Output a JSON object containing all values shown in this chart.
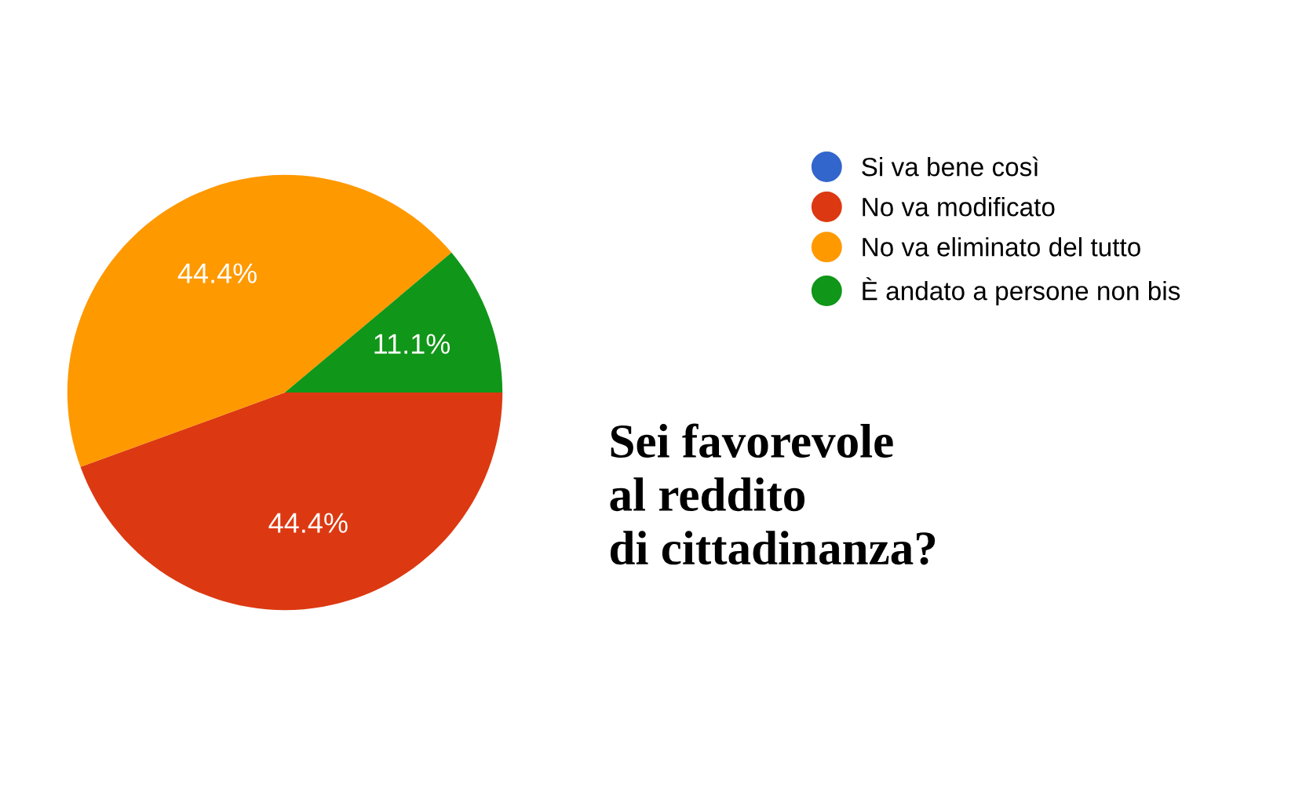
{
  "chart_data": {
    "type": "pie",
    "title": "Sei favorevole\nal reddito\ndi cittadinanza?",
    "categories": [
      "Si va bene così",
      "No va modificato",
      "No va eliminato del tutto",
      "È andato a persone non bis"
    ],
    "values": [
      0,
      44.4,
      44.4,
      11.1
    ],
    "colors": [
      "#3366cc",
      "#dc3912",
      "#ff9900",
      "#109618"
    ],
    "value_labels": [
      null,
      "44.4%",
      "44.4%",
      "11.1%"
    ],
    "legend": "top right"
  }
}
